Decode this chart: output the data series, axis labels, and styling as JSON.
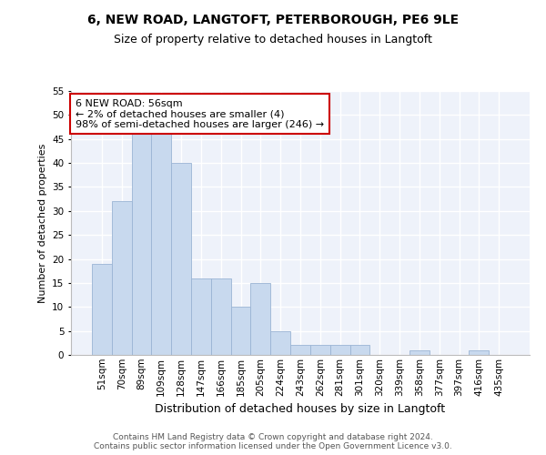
{
  "title_line1": "6, NEW ROAD, LANGTOFT, PETERBOROUGH, PE6 9LE",
  "title_line2": "Size of property relative to detached houses in Langtoft",
  "xlabel": "Distribution of detached houses by size in Langtoft",
  "ylabel": "Number of detached properties",
  "categories": [
    "51sqm",
    "70sqm",
    "89sqm",
    "109sqm",
    "128sqm",
    "147sqm",
    "166sqm",
    "185sqm",
    "205sqm",
    "224sqm",
    "243sqm",
    "262sqm",
    "281sqm",
    "301sqm",
    "320sqm",
    "339sqm",
    "358sqm",
    "377sqm",
    "397sqm",
    "416sqm",
    "435sqm"
  ],
  "values": [
    19,
    32,
    46,
    47,
    40,
    16,
    16,
    10,
    15,
    5,
    2,
    2,
    2,
    2,
    0,
    0,
    1,
    0,
    0,
    1,
    0
  ],
  "bar_color": "#c8d9ee",
  "bar_edge_color": "#9ab4d4",
  "annotation_text": "6 NEW ROAD: 56sqm\n← 2% of detached houses are smaller (4)\n98% of semi-detached houses are larger (246) →",
  "annotation_box_color": "#ffffff",
  "annotation_box_edge_color": "#cc0000",
  "ylim": [
    0,
    55
  ],
  "yticks": [
    0,
    5,
    10,
    15,
    20,
    25,
    30,
    35,
    40,
    45,
    50,
    55
  ],
  "background_color": "#eef2fa",
  "grid_color": "#ffffff",
  "footer_text": "Contains HM Land Registry data © Crown copyright and database right 2024.\nContains public sector information licensed under the Open Government Licence v3.0.",
  "title_fontsize": 10,
  "subtitle_fontsize": 9,
  "xlabel_fontsize": 9,
  "ylabel_fontsize": 8,
  "tick_fontsize": 7.5,
  "annotation_fontsize": 8,
  "footer_fontsize": 6.5
}
